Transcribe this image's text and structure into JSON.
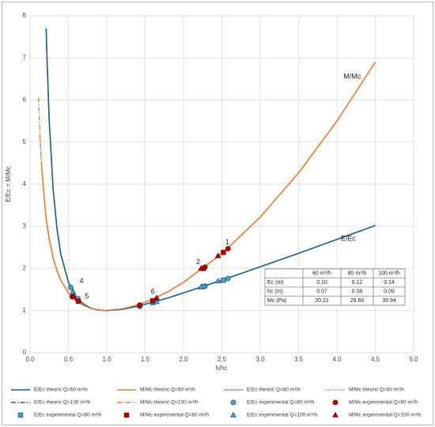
{
  "chart_data": {
    "type": "line",
    "xlabel": "h/hc",
    "ylabel": "E/Ec = M/Mc",
    "xlim": [
      0,
      5
    ],
    "ylim": [
      0,
      8
    ],
    "grid": true,
    "xticks": [
      {
        "value": 0,
        "label": "0.0"
      },
      {
        "value": 0.5,
        "label": "0.5"
      },
      {
        "value": 1,
        "label": "1.0"
      },
      {
        "value": 1.5,
        "label": "1.5"
      },
      {
        "value": 2,
        "label": "2.0"
      },
      {
        "value": 2.5,
        "label": "2.5"
      },
      {
        "value": 3,
        "label": "3.0"
      },
      {
        "value": 3.5,
        "label": "3.5"
      },
      {
        "value": 4,
        "label": "4.0"
      },
      {
        "value": 4.5,
        "label": "4.5"
      },
      {
        "value": 5,
        "label": "5.0"
      }
    ],
    "yticks": [
      0,
      1,
      2,
      3,
      4,
      5,
      6,
      7,
      8
    ],
    "x": [
      0.11,
      0.13,
      0.15,
      0.2,
      0.21,
      0.22,
      0.25,
      0.3,
      0.35,
      0.4,
      0.5,
      0.6,
      0.7,
      0.8,
      0.9,
      1.0,
      1.2,
      1.4,
      1.6,
      1.8,
      2.0,
      2.5,
      3.0,
      3.5,
      4.0,
      4.5
    ],
    "series": [
      {
        "name": "E/Ec theoric Q=60 m³/h",
        "color": "#1f5f8f",
        "dash": "solid",
        "values": [
          null,
          null,
          null,
          null,
          7.7,
          7.03,
          5.5,
          3.9,
          2.96,
          2.35,
          1.67,
          1.33,
          1.15,
          1.05,
          1.01,
          1,
          1.03,
          1.1,
          1.2,
          1.3,
          1.42,
          1.72,
          2.04,
          2.36,
          2.69,
          3.02
        ]
      },
      {
        "name": "M/Mc theoric Q=60 m³/h",
        "color": "#ed7d31",
        "dash": "solid",
        "values": [
          null,
          null,
          4.45,
          3.35,
          3.19,
          3.05,
          2.69,
          2.25,
          1.95,
          1.72,
          1.42,
          1.23,
          1.12,
          1.05,
          1.01,
          1,
          1.04,
          1.13,
          1.27,
          1.45,
          1.67,
          2.35,
          3.22,
          4.27,
          5.5,
          6.9
        ]
      },
      {
        "name": "E/Ec theoric Q=80 m³/h",
        "color": "#1f5f8f",
        "dash": "dot",
        "values": [
          null,
          null,
          null,
          null,
          7.7,
          7.03,
          5.5,
          3.9,
          2.96,
          2.35,
          1.67,
          1.33,
          1.15,
          1.05,
          1.01,
          1,
          1.03,
          1.1,
          1.2,
          1.3,
          1.42,
          1.72,
          2.04,
          2.36,
          2.69,
          3.02
        ]
      },
      {
        "name": "M/Mc theoric Q=80 m³/h",
        "color": "#ed7d31",
        "dash": "dot",
        "values": [
          null,
          5.13,
          4.45,
          3.35,
          3.19,
          3.05,
          2.69,
          2.25,
          1.95,
          1.72,
          1.42,
          1.23,
          1.12,
          1.05,
          1.01,
          1,
          1.04,
          1.13,
          1.27,
          1.45,
          1.67,
          2.35,
          3.22,
          4.27,
          5.5,
          6.9
        ]
      },
      {
        "name": "E/Ec theoric Q=100 m³/h",
        "color": "#1f5f8f",
        "dash": "dashdot",
        "values": [
          null,
          null,
          null,
          null,
          7.7,
          7.03,
          5.5,
          3.9,
          2.96,
          2.35,
          1.67,
          1.33,
          1.15,
          1.05,
          1.01,
          1,
          1.03,
          1.1,
          1.2,
          1.3,
          1.42,
          1.72,
          2.04,
          2.36,
          2.69,
          3.02
        ]
      },
      {
        "name": "M/Mc theoric Q=100 m³/h",
        "color": "#ed7d31",
        "dash": "dashdot",
        "values": [
          6.06,
          5.13,
          4.45,
          3.35,
          3.19,
          3.05,
          2.69,
          2.25,
          1.95,
          1.72,
          1.42,
          1.23,
          1.12,
          1.05,
          1.01,
          1,
          1.04,
          1.13,
          1.27,
          1.45,
          1.67,
          2.35,
          3.22,
          4.27,
          5.5,
          6.9
        ]
      },
      {
        "name": "E/Ec experimental Q=60 m³/h",
        "color": "#4ea3c8",
        "marker": "circle",
        "x": [
          0.53,
          1.43,
          2.28,
          2.58
        ],
        "values": [
          1.55,
          1.1,
          1.58,
          1.76
        ]
      },
      {
        "name": "M/Mc experimental Q=60 m³/h",
        "color": "#c00000",
        "marker": "circle",
        "x": [
          0.55,
          1.43,
          2.28,
          2.58
        ],
        "values": [
          1.33,
          1.13,
          2.03,
          2.47
        ]
      },
      {
        "name": "E/Ec experimental Q=80 m³/h",
        "color": "#4ea3c8",
        "marker": "square",
        "x": [
          0.62,
          1.6,
          2.26,
          2.52
        ],
        "values": [
          1.28,
          1.19,
          1.57,
          1.72
        ]
      },
      {
        "name": "M/Mc experimental Q=80 m³/h",
        "color": "#c00000",
        "marker": "square",
        "x": [
          0.63,
          1.6,
          2.26,
          2.52
        ],
        "values": [
          1.22,
          1.23,
          2.0,
          2.38
        ]
      },
      {
        "name": "E/Ec experimental Q=100 m³/h",
        "color": "#4ea3c8",
        "marker": "triangle",
        "x": [
          0.56,
          1.65,
          2.23,
          2.45
        ],
        "values": [
          1.45,
          1.21,
          1.56,
          1.7
        ]
      },
      {
        "name": "M/Mc experimental Q=100 m³/h",
        "color": "#c00000",
        "marker": "triangle",
        "x": [
          0.57,
          1.65,
          2.23,
          2.45
        ],
        "values": [
          1.32,
          1.3,
          2.0,
          2.3
        ]
      }
    ],
    "annotations": [
      "1",
      "2",
      "4",
      "5",
      "6",
      "M/Mc",
      "E/Ec"
    ]
  },
  "table": {
    "header": [
      "60 m³/h",
      "80 m³/h",
      "100 m³/h"
    ],
    "rows": [
      [
        "Ec (m)",
        "0.10",
        "0.12",
        "0.14"
      ],
      [
        "hc (m)",
        "0.07",
        "0.08",
        "0.09"
      ],
      [
        "Mc (Pa)",
        "20.21",
        "29.66",
        "39.94"
      ]
    ]
  }
}
